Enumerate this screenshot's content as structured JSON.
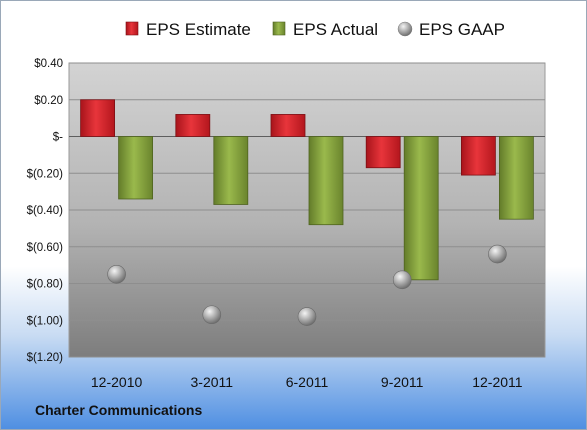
{
  "chart_data": {
    "type": "bar",
    "categories": [
      "12-2010",
      "3-2011",
      "6-2011",
      "9-2011",
      "12-2011"
    ],
    "series": [
      {
        "name": "EPS Estimate",
        "kind": "bar",
        "color": "#cc1f26",
        "values": [
          0.2,
          0.12,
          0.12,
          -0.17,
          -0.21
        ]
      },
      {
        "name": "EPS Actual",
        "kind": "bar",
        "color": "#7f9c38",
        "values": [
          -0.34,
          -0.37,
          -0.48,
          -0.78,
          -0.45
        ]
      },
      {
        "name": "EPS GAAP",
        "kind": "marker",
        "color": "#a8a8a8",
        "values": [
          -0.75,
          -0.97,
          -0.98,
          -0.78,
          -0.64
        ]
      }
    ],
    "yticks": [
      0.4,
      0.2,
      0,
      -0.2,
      -0.4,
      -0.6,
      -0.8,
      -1.0,
      -1.2
    ],
    "ytick_labels": [
      "$0.40",
      "$0.20",
      "$-",
      "$(0.20)",
      "$(0.40)",
      "$(0.60)",
      "$(0.80)",
      "$(1.00)",
      "$(1.20)"
    ],
    "ylim": [
      -1.2,
      0.4
    ],
    "grid": true,
    "legend_position": "top",
    "footer": "Charter Communications"
  }
}
